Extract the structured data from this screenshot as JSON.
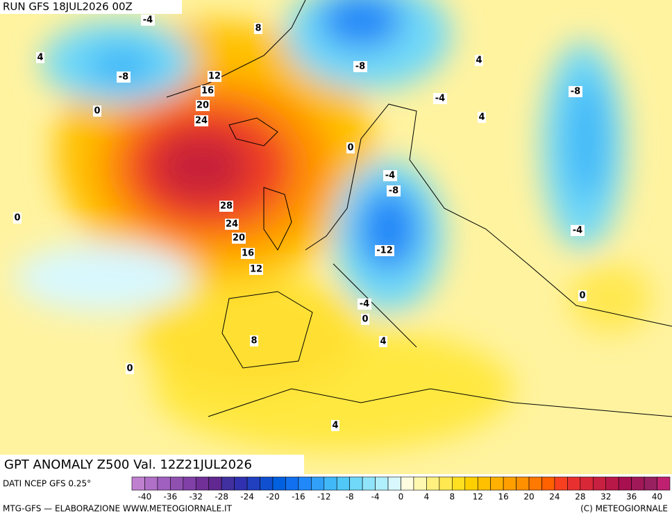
{
  "header": {
    "run": "RUN GFS 18JUL2026 00Z"
  },
  "map": {
    "title": "GPT ANOMALY Z500 Val. 12Z21JUL2026",
    "contour_labels": [
      -4,
      8,
      4,
      -8,
      -8,
      4,
      12,
      16,
      20,
      24,
      0,
      -4,
      4,
      -8,
      0,
      -4,
      -8,
      0,
      28,
      24,
      20,
      16,
      12,
      -12,
      -4,
      -4,
      0,
      0,
      4,
      8,
      0,
      4
    ]
  },
  "legend": {
    "source": "DATI NCEP GFS 0.25°",
    "ticks": [
      -40,
      -36,
      -32,
      -28,
      -24,
      -20,
      -16,
      -12,
      -8,
      -4,
      0,
      4,
      8,
      12,
      16,
      20,
      24,
      28,
      32,
      36,
      40
    ],
    "range": [
      -42,
      42
    ],
    "colors": [
      "#c080d0",
      "#b070c8",
      "#a060c0",
      "#9050b0",
      "#8040a8",
      "#703098",
      "#602890",
      "#4030a0",
      "#3030b0",
      "#2040c0",
      "#1050d0",
      "#0060e0",
      "#1070f0",
      "#2088f8",
      "#30a0f8",
      "#40b8f8",
      "#50c8f8",
      "#70d8f8",
      "#90e4fa",
      "#b0effc",
      "#d8f8fe",
      "#fffde0",
      "#fff8b0",
      "#fff080",
      "#ffe850",
      "#ffe020",
      "#ffd000",
      "#ffc000",
      "#ffb000",
      "#ffa000",
      "#ff9000",
      "#ff7800",
      "#ff6000",
      "#f84020",
      "#e83030",
      "#d82838",
      "#c82040",
      "#b81848",
      "#a81050",
      "#a01858",
      "#982060",
      "#c02070"
    ]
  },
  "footer": {
    "left": "MTG-GFS — ELABORAZIONE WWW.METEOGIORNALE.IT",
    "right": "(C) METEOGIORNALE"
  }
}
